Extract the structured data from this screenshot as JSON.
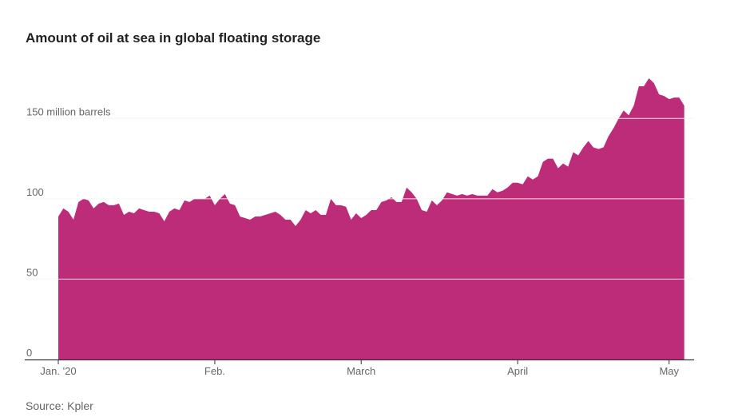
{
  "title": "Amount of oil at sea in global floating storage",
  "source": "Source: Kpler",
  "colors": {
    "area": "#bd2c78",
    "gridline": "#ffffff",
    "axis": "#333333",
    "text": "#666666"
  },
  "chart_data": {
    "type": "area",
    "title": "Amount of oil at sea in global floating storage",
    "y_unit_label": "million barrels",
    "ylim": [
      0,
      175
    ],
    "y_ticks": [
      {
        "value": 0,
        "label": "0"
      },
      {
        "value": 50,
        "label": "50"
      },
      {
        "value": 100,
        "label": "100"
      },
      {
        "value": 150,
        "label": "150 million barrels"
      }
    ],
    "x_ticks": [
      {
        "day": 0,
        "label": "Jan. '20"
      },
      {
        "day": 31,
        "label": "Feb."
      },
      {
        "day": 60,
        "label": "March"
      },
      {
        "day": 91,
        "label": "April"
      },
      {
        "day": 121,
        "label": "May"
      }
    ],
    "grid": true,
    "legend": "none",
    "series": [
      {
        "values": [
          89,
          94,
          92,
          87,
          98,
          100,
          99,
          94,
          97,
          98,
          96,
          96,
          97,
          90,
          92,
          91,
          94,
          93,
          92,
          92,
          91,
          86,
          92,
          94,
          93,
          99,
          98,
          100,
          100,
          100,
          102,
          96,
          100,
          103,
          97,
          96,
          89,
          88,
          87,
          89,
          89,
          90,
          91,
          92,
          90,
          87,
          87,
          83,
          87,
          93,
          91,
          93,
          90,
          90,
          100,
          96,
          96,
          95,
          87,
          91,
          88,
          90,
          93,
          93,
          98,
          99,
          101,
          98,
          98,
          107,
          104,
          100,
          93,
          92,
          99,
          96,
          99,
          104,
          103,
          102,
          103,
          102,
          103,
          102,
          102,
          102,
          106,
          104,
          105,
          107,
          110,
          110,
          109,
          114,
          112,
          114,
          123,
          125,
          125,
          119,
          122,
          120,
          129,
          127,
          132,
          136,
          132,
          131,
          132,
          139,
          144,
          150,
          155,
          152,
          158,
          170,
          170,
          175,
          172,
          165,
          164,
          162,
          163,
          163,
          158
        ]
      }
    ]
  }
}
